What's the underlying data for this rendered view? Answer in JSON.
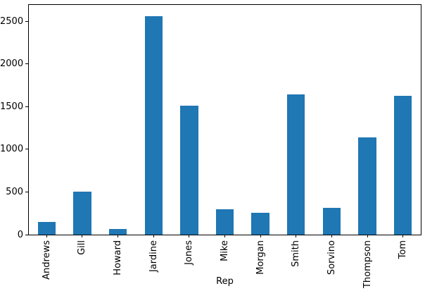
{
  "chart_data": {
    "type": "bar",
    "title": "",
    "xlabel": "Rep",
    "ylabel": "",
    "categories": [
      "Andrews",
      "Gill",
      "Howard",
      "Jardine",
      "Jones",
      "Mike",
      "Morgan",
      "Smith",
      "Sorvino",
      "Thompson",
      "Tom"
    ],
    "values": [
      145,
      500,
      65,
      2565,
      1510,
      300,
      260,
      1640,
      310,
      1140,
      1630
    ],
    "yticks": [
      0,
      500,
      1000,
      1500,
      2000,
      2500
    ],
    "ylim": [
      0,
      2693
    ],
    "bar_width_fraction": 0.5,
    "bar_color": "#1f77b4",
    "spine_color": "#000000",
    "tick_color": "#000000",
    "background_color": "#ffffff",
    "grid": false,
    "legend": false,
    "x_tick_label_rotation": 90
  }
}
